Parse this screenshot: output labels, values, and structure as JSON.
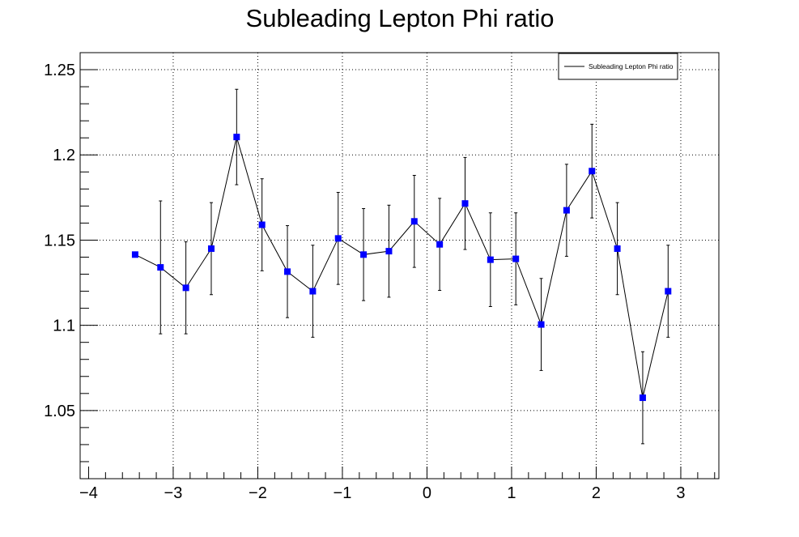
{
  "chart_data": {
    "type": "scatter",
    "title": "Subleading Lepton Phi ratio",
    "xlabel": "",
    "ylabel": "",
    "xlim": [
      -4.1,
      3.45
    ],
    "ylim": [
      1.01,
      1.26
    ],
    "grid": true,
    "legend_position": "top-right",
    "series": [
      {
        "name": "Subleading Lepton Phi ratio",
        "line_color": "#000000",
        "marker_color": "#0000ff",
        "marker": "square",
        "points": [
          {
            "x": -3.45,
            "y": 1.1415,
            "err": 0.0
          },
          {
            "x": -3.15,
            "y": 1.134,
            "err": 0.039
          },
          {
            "x": -2.85,
            "y": 1.122,
            "err": 0.027
          },
          {
            "x": -2.55,
            "y": 1.145,
            "err": 0.027
          },
          {
            "x": -2.25,
            "y": 1.2105,
            "err": 0.028
          },
          {
            "x": -1.95,
            "y": 1.159,
            "err": 0.027
          },
          {
            "x": -1.65,
            "y": 1.1315,
            "err": 0.027
          },
          {
            "x": -1.35,
            "y": 1.12,
            "err": 0.027
          },
          {
            "x": -1.05,
            "y": 1.151,
            "err": 0.027
          },
          {
            "x": -0.75,
            "y": 1.1415,
            "err": 0.027
          },
          {
            "x": -0.45,
            "y": 1.1435,
            "err": 0.027
          },
          {
            "x": -0.15,
            "y": 1.161,
            "err": 0.027
          },
          {
            "x": 0.15,
            "y": 1.1475,
            "err": 0.027
          },
          {
            "x": 0.45,
            "y": 1.1715,
            "err": 0.027
          },
          {
            "x": 0.75,
            "y": 1.1385,
            "err": 0.0275
          },
          {
            "x": 1.05,
            "y": 1.139,
            "err": 0.027
          },
          {
            "x": 1.35,
            "y": 1.1005,
            "err": 0.027
          },
          {
            "x": 1.65,
            "y": 1.1675,
            "err": 0.027
          },
          {
            "x": 1.95,
            "y": 1.1905,
            "err": 0.0275
          },
          {
            "x": 2.25,
            "y": 1.145,
            "err": 0.027
          },
          {
            "x": 2.55,
            "y": 1.0575,
            "err": 0.027
          },
          {
            "x": 2.85,
            "y": 1.12,
            "err": 0.027
          }
        ]
      }
    ],
    "x_ticks": [
      -4,
      -3,
      -2,
      -1,
      0,
      1,
      2,
      3
    ],
    "x_tick_labels": [
      "−4",
      "−3",
      "−2",
      "−1",
      "0",
      "1",
      "2",
      "3"
    ],
    "y_ticks": [
      1.05,
      1.1,
      1.15,
      1.2,
      1.25
    ],
    "y_tick_labels": [
      "1.05",
      "1.1",
      "1.15",
      "1.2",
      "1.25"
    ]
  }
}
